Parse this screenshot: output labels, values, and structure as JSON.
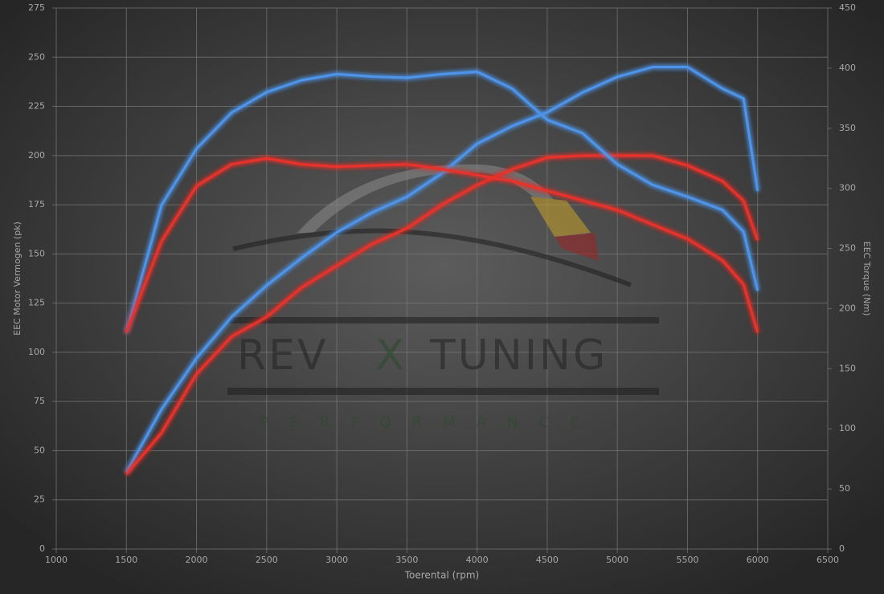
{
  "chart_data": {
    "type": "line",
    "xlabel": "Toerental (rpm)",
    "ylabel": "EEC Motor Vermogen (pk)",
    "y2label": "EEC Torque (Nm)",
    "watermark": [
      "REV",
      "X",
      "TUNING"
    ],
    "watermark_sub": "PERFORMANCE",
    "x": [
      1500,
      1750,
      2000,
      2250,
      2500,
      2750,
      3000,
      3250,
      3500,
      3750,
      4000,
      4250,
      4500,
      4750,
      5000,
      5250,
      5500,
      5750,
      5900,
      6000
    ],
    "xlim": [
      1000,
      6500
    ],
    "xticks": [
      1000,
      1500,
      2000,
      2500,
      3000,
      3500,
      4000,
      4500,
      5000,
      5500,
      6000,
      6500
    ],
    "ylim": [
      0,
      275
    ],
    "yticks": [
      0,
      25,
      50,
      75,
      100,
      125,
      150,
      175,
      200,
      225,
      250,
      275
    ],
    "y2lim": [
      0,
      450
    ],
    "y2ticks": [
      0,
      50,
      100,
      150,
      200,
      250,
      300,
      350,
      400,
      450
    ],
    "grid": true,
    "series": [
      {
        "color": "#4d94ea",
        "values": [
          39,
          71,
          97,
          118,
          134,
          148,
          161,
          171,
          179,
          191,
          206,
          215,
          222,
          232,
          240,
          245,
          245,
          234,
          229,
          182
        ]
      },
      {
        "color": "#e8302c",
        "values": [
          38,
          59,
          89,
          108,
          118,
          133,
          144,
          155,
          163,
          175,
          185,
          193,
          199,
          200,
          200,
          200,
          195,
          187,
          177,
          157
        ]
      },
      {
        "color": "#4d94ea",
        "axis": "y2",
        "values": [
          180,
          286,
          333,
          363,
          380,
          390,
          395,
          393,
          392,
          395,
          397,
          383,
          357,
          346,
          320,
          303,
          293,
          282,
          264,
          215
        ]
      },
      {
        "color": "#e8302c",
        "axis": "y2",
        "values": [
          180,
          256,
          302,
          320,
          325,
          320,
          318,
          319,
          320,
          316,
          311,
          306,
          298,
          290,
          282,
          270,
          258,
          240,
          220,
          180
        ]
      }
    ]
  }
}
